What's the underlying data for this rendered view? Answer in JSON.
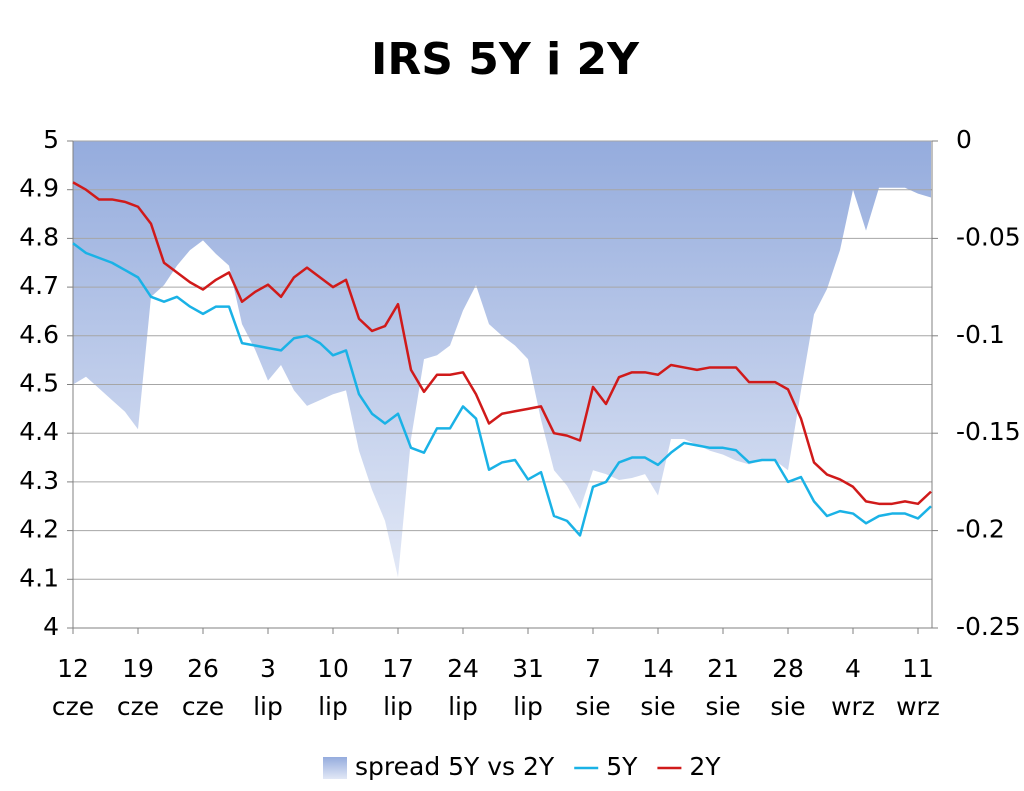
{
  "chart_data": {
    "type": "line",
    "title": "IRS 5Y i 2Y",
    "categories": [
      "12 cze",
      null,
      null,
      null,
      null,
      "19 cze",
      null,
      null,
      null,
      null,
      "26 cze",
      null,
      null,
      null,
      null,
      "3 lip",
      null,
      null,
      null,
      null,
      "10 lip",
      null,
      null,
      null,
      null,
      "17 lip",
      null,
      null,
      null,
      null,
      "24 lip",
      null,
      null,
      null,
      null,
      "31 lip",
      null,
      null,
      null,
      null,
      "7 sie",
      null,
      null,
      null,
      null,
      "14 sie",
      null,
      null,
      null,
      null,
      "21 sie",
      null,
      null,
      null,
      null,
      "28 sie",
      null,
      null,
      null,
      null,
      "4 wrz",
      null,
      null,
      null,
      null,
      "11 wrz",
      null
    ],
    "series": [
      {
        "name": "spread 5Y vs 2Y",
        "type": "area",
        "axis": "y2",
        "color": "#95acdd",
        "values": [
          -0.125,
          -0.121,
          -0.127,
          -0.133,
          -0.139,
          -0.148,
          -0.08,
          -0.074,
          -0.064,
          -0.056,
          -0.051,
          -0.058,
          -0.064,
          -0.094,
          -0.107,
          -0.123,
          -0.115,
          -0.128,
          -0.136,
          -0.133,
          -0.13,
          -0.128,
          -0.159,
          -0.179,
          -0.195,
          -0.224,
          -0.153,
          -0.112,
          -0.11,
          -0.105,
          -0.087,
          -0.074,
          -0.094,
          -0.1,
          -0.105,
          -0.112,
          -0.143,
          -0.169,
          -0.177,
          -0.189,
          -0.169,
          -0.171,
          -0.174,
          -0.173,
          -0.171,
          -0.182,
          -0.153,
          -0.153,
          -0.156,
          -0.159,
          -0.161,
          -0.164,
          -0.166,
          -0.164,
          -0.164,
          -0.169,
          -0.128,
          -0.089,
          -0.076,
          -0.056,
          -0.025,
          -0.046,
          -0.024,
          -0.024,
          -0.024,
          -0.027,
          -0.029
        ]
      },
      {
        "name": "5Y",
        "type": "line",
        "color": "#1ab2e6",
        "values": [
          4.79,
          4.77,
          4.76,
          4.75,
          4.735,
          4.72,
          4.68,
          4.67,
          4.68,
          4.66,
          4.645,
          4.66,
          4.66,
          4.585,
          4.58,
          4.575,
          4.57,
          4.595,
          4.6,
          4.585,
          4.56,
          4.57,
          4.48,
          4.44,
          4.42,
          4.44,
          4.37,
          4.36,
          4.41,
          4.41,
          4.455,
          4.43,
          4.325,
          4.34,
          4.345,
          4.305,
          4.32,
          4.23,
          4.22,
          4.19,
          4.29,
          4.3,
          4.34,
          4.35,
          4.35,
          4.335,
          4.36,
          4.38,
          4.375,
          4.37,
          4.37,
          4.365,
          4.34,
          4.345,
          4.345,
          4.3,
          4.31,
          4.26,
          4.23,
          4.24,
          4.235,
          4.215,
          4.23,
          4.235,
          4.235,
          4.225,
          4.25
        ]
      },
      {
        "name": "2Y",
        "type": "line",
        "color": "#d01a1a",
        "values": [
          4.915,
          4.9,
          4.88,
          4.88,
          4.875,
          4.865,
          4.83,
          4.75,
          4.73,
          4.71,
          4.695,
          4.715,
          4.73,
          4.67,
          4.69,
          4.705,
          4.68,
          4.72,
          4.74,
          4.72,
          4.7,
          4.715,
          4.635,
          4.61,
          4.62,
          4.665,
          4.53,
          4.485,
          4.52,
          4.52,
          4.525,
          4.48,
          4.42,
          4.44,
          4.445,
          4.45,
          4.455,
          4.4,
          4.395,
          4.385,
          4.495,
          4.46,
          4.515,
          4.525,
          4.525,
          4.52,
          4.54,
          4.535,
          4.53,
          4.535,
          4.535,
          4.535,
          4.505,
          4.505,
          4.505,
          4.49,
          4.43,
          4.34,
          4.315,
          4.305,
          4.29,
          4.26,
          4.255,
          4.255,
          4.26,
          4.255,
          4.28
        ]
      }
    ],
    "ylim": [
      4,
      5
    ],
    "yticks": [
      4,
      4.1,
      4.2,
      4.3,
      4.4,
      4.5,
      4.6,
      4.7,
      4.8,
      4.9,
      5
    ],
    "y2lim": [
      -0.25,
      0
    ],
    "y2ticks": [
      -0.25,
      -0.2,
      -0.15,
      -0.1,
      -0.05,
      0
    ],
    "grid": true,
    "legend": "bottom"
  }
}
